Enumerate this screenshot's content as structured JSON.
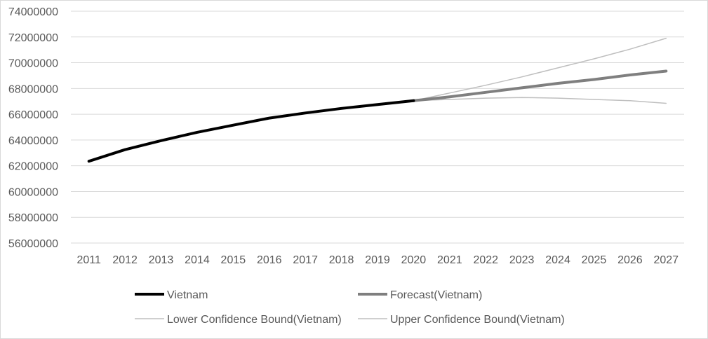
{
  "chart_data": {
    "type": "line",
    "title": "",
    "xlabel": "",
    "ylabel": "",
    "ylim": [
      56000000,
      74000000
    ],
    "y_ticks": [
      "74000000",
      "72000000",
      "70000000",
      "68000000",
      "66000000",
      "64000000",
      "62000000",
      "60000000",
      "58000000",
      "56000000"
    ],
    "categories": [
      "2011",
      "2012",
      "2013",
      "2014",
      "2015",
      "2016",
      "2017",
      "2018",
      "2019",
      "2020",
      "2021",
      "2022",
      "2023",
      "2024",
      "2025",
      "2026",
      "2027"
    ],
    "grid": true,
    "legend_position": "bottom",
    "series": [
      {
        "name": "Vietnam",
        "color": "#000000",
        "values": [
          62350000,
          63250000,
          63950000,
          64600000,
          65150000,
          65700000,
          66100000,
          66450000,
          66750000,
          67050000,
          null,
          null,
          null,
          null,
          null,
          null,
          null
        ]
      },
      {
        "name": "Forecast(Vietnam)",
        "color": "#7f7f7f",
        "values": [
          null,
          null,
          null,
          null,
          null,
          null,
          null,
          null,
          null,
          67050000,
          67350000,
          67700000,
          68050000,
          68400000,
          68700000,
          69050000,
          69350000
        ]
      },
      {
        "name": "Lower Confidence Bound(Vietnam)",
        "color": "#bfbfbf",
        "values": [
          null,
          null,
          null,
          null,
          null,
          null,
          null,
          null,
          null,
          67050000,
          67150000,
          67250000,
          67300000,
          67250000,
          67150000,
          67050000,
          66850000
        ]
      },
      {
        "name": "Upper Confidence Bound(Vietnam)",
        "color": "#bfbfbf",
        "values": [
          null,
          null,
          null,
          null,
          null,
          null,
          null,
          null,
          null,
          67050000,
          67650000,
          68250000,
          68900000,
          69600000,
          70300000,
          71050000,
          71900000
        ]
      }
    ]
  }
}
